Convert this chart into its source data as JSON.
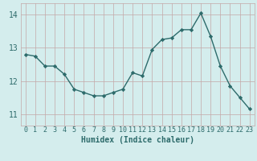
{
  "x": [
    0,
    1,
    2,
    3,
    4,
    5,
    6,
    7,
    8,
    9,
    10,
    11,
    12,
    13,
    14,
    15,
    16,
    17,
    18,
    19,
    20,
    21,
    22,
    23
  ],
  "y": [
    12.8,
    12.75,
    12.45,
    12.45,
    12.2,
    11.75,
    11.65,
    11.55,
    11.55,
    11.65,
    11.75,
    12.25,
    12.15,
    12.95,
    13.25,
    13.3,
    13.55,
    13.55,
    14.05,
    13.35,
    12.45,
    11.85,
    11.5,
    11.15
  ],
  "line_color": "#2d6b6b",
  "marker": "D",
  "marker_size": 2.2,
  "bg_color": "#d4eded",
  "grid_color": "#c4a8a8",
  "xlabel": "Humidex (Indice chaleur)",
  "yticks": [
    11,
    12,
    13,
    14
  ],
  "xticks": [
    0,
    1,
    2,
    3,
    4,
    5,
    6,
    7,
    8,
    9,
    10,
    11,
    12,
    13,
    14,
    15,
    16,
    17,
    18,
    19,
    20,
    21,
    22,
    23
  ],
  "xlim": [
    -0.5,
    23.5
  ],
  "ylim": [
    10.65,
    14.35
  ],
  "xlabel_fontsize": 7,
  "tick_fontsize": 6,
  "line_width": 1.0
}
